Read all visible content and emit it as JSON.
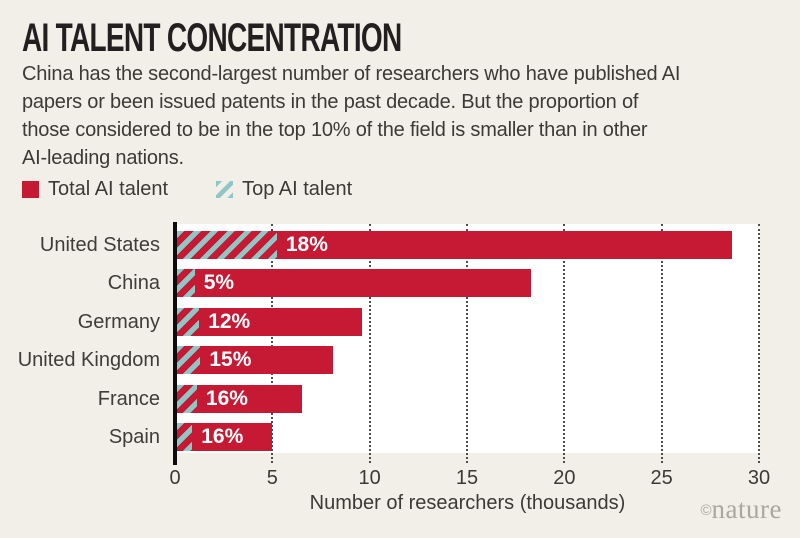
{
  "header": {
    "title": "AI TALENT CONCENTRATION",
    "description_lines": [
      "China has the second-largest number of researchers who have published AI",
      "papers or been issued patents in the past decade. But the proportion of",
      "those considered to be in the top 10% of the field is smaller than in other",
      "AI-leading nations."
    ]
  },
  "legend": {
    "items": [
      {
        "label": "Total AI talent",
        "swatch": "solid-red"
      },
      {
        "label": "Top AI talent",
        "swatch": "hatched-teal"
      }
    ]
  },
  "chart_data": {
    "type": "bar",
    "orientation": "horizontal",
    "categories": [
      "United States",
      "China",
      "Germany",
      "United Kingdom",
      "France",
      "Spain"
    ],
    "series": [
      {
        "name": "Total AI talent",
        "unit": "thousands of researchers",
        "values": [
          28.5,
          18.2,
          9.5,
          8.0,
          6.4,
          4.9
        ]
      },
      {
        "name": "Top AI talent share of total",
        "unit": "%",
        "values": [
          18,
          5,
          12,
          15,
          16,
          16
        ]
      }
    ],
    "bar_labels": [
      "18%",
      "5%",
      "12%",
      "15%",
      "16%",
      "16%"
    ],
    "xlabel": "Number of researchers (thousands)",
    "xticks": [
      0,
      5,
      10,
      15,
      20,
      25,
      30
    ],
    "xlim": [
      0,
      30
    ],
    "grid": "dotted-vertical",
    "legend_position": "above-chart"
  },
  "footer": {
    "credit_symbol": "©",
    "credit_name": "nature"
  },
  "colors": {
    "accent_red": "#c61a34",
    "accent_teal": "#8ec7c6",
    "background": "#f1efe7",
    "plot_background": "#ffffff",
    "title_text": "#231f20",
    "body_text": "#3c3a35",
    "credit_text": "#a9a79f"
  }
}
